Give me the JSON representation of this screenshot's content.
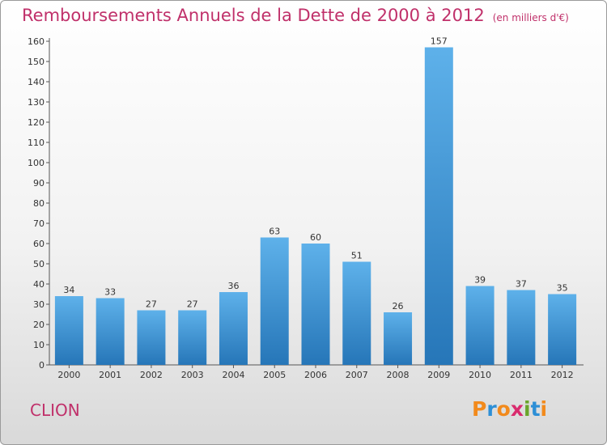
{
  "title": "Remboursements Annuels de la Dette de 2000 à 2012",
  "unit": "(en milliers d'€)",
  "commune": "CLION",
  "logo": {
    "letters": [
      "P",
      "r",
      "o",
      "x",
      "i",
      "t",
      "i"
    ],
    "colors": [
      "#f28a1c",
      "#2d8fd6",
      "#f28a1c",
      "#d92b6e",
      "#6aa52b",
      "#2d8fd6",
      "#f28a1c"
    ]
  },
  "colors": {
    "title": "#c0306a",
    "bar_top": "#5eb1ea",
    "bar_bottom": "#2676b8"
  },
  "chart_data": {
    "type": "bar",
    "categories": [
      "2000",
      "2001",
      "2002",
      "2003",
      "2004",
      "2005",
      "2006",
      "2007",
      "2008",
      "2009",
      "2010",
      "2011",
      "2012"
    ],
    "values": [
      34,
      33,
      27,
      27,
      36,
      63,
      60,
      51,
      26,
      157,
      39,
      37,
      35
    ],
    "ylim": [
      0,
      160
    ],
    "yticks": [
      0,
      10,
      20,
      30,
      40,
      50,
      60,
      70,
      80,
      90,
      100,
      110,
      120,
      130,
      140,
      150,
      160
    ],
    "grid": false,
    "legend": "none"
  }
}
